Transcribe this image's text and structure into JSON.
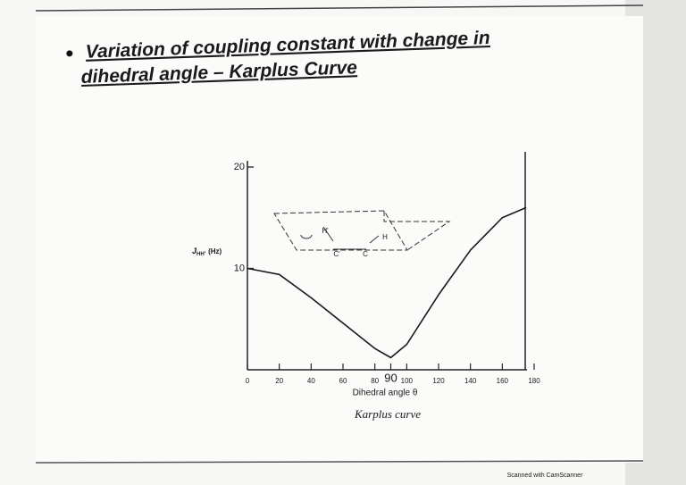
{
  "slide": {
    "bullet_title": [
      "Variation of coupling constant with change in",
      "dihedral angle – Karplus Curve"
    ],
    "caption": "Karplus curve",
    "watermark": "Scanned with CamScanner"
  },
  "chart_data": {
    "type": "line",
    "ylabel": {
      "symbol": "J",
      "subscript": "HH'",
      "unit": "(Hz)"
    },
    "xlabel": "Dihedral angle θ",
    "x": [
      0,
      20,
      40,
      60,
      80,
      90,
      100,
      120,
      140,
      160,
      175
    ],
    "values": [
      10,
      9.4,
      7.1,
      4.6,
      2.1,
      1.2,
      2.5,
      7.4,
      11.8,
      15,
      16
    ],
    "color": "#1a1a1a",
    "xlim": [
      0,
      180
    ],
    "ylim": [
      0,
      20
    ],
    "xticks": [
      0,
      20,
      40,
      60,
      80,
      90,
      100,
      120,
      140,
      160,
      180
    ],
    "yticks": [
      10,
      20
    ],
    "annotations": [
      "H'",
      "H",
      "C'",
      "C"
    ]
  }
}
